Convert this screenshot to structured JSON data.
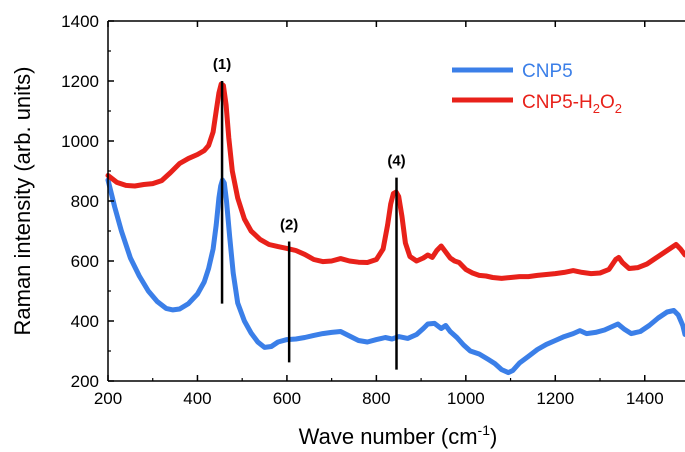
{
  "chart_data": {
    "type": "line",
    "xlabel": "Wave number (cm",
    "xlabel_sup": "-1",
    "xlabel_close": ")",
    "ylabel": "Raman intensity (arb. units)",
    "xlim": [
      200,
      1490
    ],
    "ylim": [
      200,
      1400
    ],
    "x_ticks": [
      200,
      400,
      600,
      800,
      1000,
      1200,
      1400
    ],
    "y_ticks": [
      200,
      400,
      600,
      800,
      1000,
      1200,
      1400
    ],
    "x_tick_labels": [
      "200",
      "400",
      "600",
      "800",
      "1000",
      "1200",
      "1400"
    ],
    "y_tick_labels": [
      "200",
      "400",
      "600",
      "800",
      "1000",
      "1200",
      "1400"
    ],
    "grid": false,
    "legend_position": "top-right",
    "legend": {
      "cnp5": "CNP5",
      "cnp5_h2o2": {
        "base": "CNP5-H",
        "sub1": "2",
        "mid": "O",
        "sub2": "2"
      }
    },
    "series": [
      {
        "name": "CNP5",
        "color": "#3B7FE8",
        "points": [
          [
            200,
            870
          ],
          [
            215,
            780
          ],
          [
            230,
            700
          ],
          [
            250,
            610
          ],
          [
            270,
            550
          ],
          [
            290,
            500
          ],
          [
            310,
            465
          ],
          [
            330,
            442
          ],
          [
            345,
            437
          ],
          [
            360,
            440
          ],
          [
            380,
            458
          ],
          [
            400,
            490
          ],
          [
            415,
            530
          ],
          [
            425,
            575
          ],
          [
            435,
            640
          ],
          [
            442,
            720
          ],
          [
            448,
            810
          ],
          [
            452,
            850
          ],
          [
            456,
            870
          ],
          [
            460,
            860
          ],
          [
            465,
            800
          ],
          [
            472,
            680
          ],
          [
            480,
            560
          ],
          [
            490,
            460
          ],
          [
            505,
            400
          ],
          [
            520,
            360
          ],
          [
            535,
            330
          ],
          [
            550,
            312
          ],
          [
            565,
            315
          ],
          [
            580,
            330
          ],
          [
            600,
            338
          ],
          [
            620,
            340
          ],
          [
            640,
            345
          ],
          [
            660,
            352
          ],
          [
            680,
            358
          ],
          [
            700,
            362
          ],
          [
            720,
            365
          ],
          [
            740,
            350
          ],
          [
            760,
            335
          ],
          [
            780,
            330
          ],
          [
            800,
            338
          ],
          [
            820,
            345
          ],
          [
            835,
            340
          ],
          [
            850,
            348
          ],
          [
            870,
            342
          ],
          [
            890,
            355
          ],
          [
            905,
            375
          ],
          [
            915,
            390
          ],
          [
            930,
            392
          ],
          [
            945,
            375
          ],
          [
            955,
            385
          ],
          [
            965,
            365
          ],
          [
            980,
            345
          ],
          [
            995,
            320
          ],
          [
            1010,
            300
          ],
          [
            1030,
            290
          ],
          [
            1050,
            272
          ],
          [
            1065,
            258
          ],
          [
            1080,
            238
          ],
          [
            1095,
            228
          ],
          [
            1105,
            235
          ],
          [
            1120,
            260
          ],
          [
            1140,
            282
          ],
          [
            1160,
            305
          ],
          [
            1180,
            322
          ],
          [
            1200,
            335
          ],
          [
            1220,
            348
          ],
          [
            1240,
            358
          ],
          [
            1255,
            368
          ],
          [
            1270,
            358
          ],
          [
            1290,
            362
          ],
          [
            1310,
            370
          ],
          [
            1325,
            380
          ],
          [
            1340,
            390
          ],
          [
            1355,
            372
          ],
          [
            1370,
            358
          ],
          [
            1390,
            365
          ],
          [
            1410,
            385
          ],
          [
            1430,
            410
          ],
          [
            1450,
            430
          ],
          [
            1465,
            435
          ],
          [
            1475,
            420
          ],
          [
            1485,
            385
          ],
          [
            1490,
            355
          ]
        ]
      },
      {
        "name": "CNP5-H2O2",
        "color": "#E8211A",
        "points": [
          [
            200,
            885
          ],
          [
            220,
            862
          ],
          [
            240,
            852
          ],
          [
            260,
            850
          ],
          [
            280,
            855
          ],
          [
            300,
            858
          ],
          [
            320,
            868
          ],
          [
            340,
            895
          ],
          [
            360,
            925
          ],
          [
            380,
            942
          ],
          [
            400,
            955
          ],
          [
            415,
            968
          ],
          [
            425,
            985
          ],
          [
            435,
            1030
          ],
          [
            442,
            1100
          ],
          [
            448,
            1160
          ],
          [
            453,
            1190
          ],
          [
            458,
            1185
          ],
          [
            464,
            1120
          ],
          [
            470,
            1010
          ],
          [
            478,
            900
          ],
          [
            490,
            810
          ],
          [
            505,
            740
          ],
          [
            520,
            700
          ],
          [
            540,
            672
          ],
          [
            560,
            655
          ],
          [
            580,
            648
          ],
          [
            600,
            642
          ],
          [
            620,
            635
          ],
          [
            640,
            622
          ],
          [
            660,
            605
          ],
          [
            680,
            598
          ],
          [
            700,
            600
          ],
          [
            720,
            608
          ],
          [
            740,
            600
          ],
          [
            760,
            596
          ],
          [
            780,
            595
          ],
          [
            800,
            605
          ],
          [
            815,
            640
          ],
          [
            825,
            720
          ],
          [
            832,
            790
          ],
          [
            838,
            825
          ],
          [
            844,
            830
          ],
          [
            850,
            815
          ],
          [
            857,
            750
          ],
          [
            865,
            660
          ],
          [
            875,
            615
          ],
          [
            890,
            600
          ],
          [
            905,
            610
          ],
          [
            915,
            620
          ],
          [
            925,
            612
          ],
          [
            935,
            635
          ],
          [
            945,
            650
          ],
          [
            955,
            630
          ],
          [
            965,
            610
          ],
          [
            975,
            600
          ],
          [
            985,
            595
          ],
          [
            1000,
            572
          ],
          [
            1015,
            560
          ],
          [
            1030,
            552
          ],
          [
            1045,
            550
          ],
          [
            1060,
            545
          ],
          [
            1080,
            542
          ],
          [
            1100,
            545
          ],
          [
            1120,
            548
          ],
          [
            1140,
            548
          ],
          [
            1160,
            552
          ],
          [
            1180,
            555
          ],
          [
            1200,
            558
          ],
          [
            1220,
            562
          ],
          [
            1240,
            568
          ],
          [
            1260,
            562
          ],
          [
            1280,
            558
          ],
          [
            1300,
            560
          ],
          [
            1320,
            572
          ],
          [
            1335,
            605
          ],
          [
            1342,
            612
          ],
          [
            1350,
            595
          ],
          [
            1365,
            575
          ],
          [
            1385,
            578
          ],
          [
            1405,
            590
          ],
          [
            1425,
            610
          ],
          [
            1445,
            630
          ],
          [
            1460,
            645
          ],
          [
            1470,
            655
          ],
          [
            1480,
            640
          ],
          [
            1490,
            620
          ]
        ]
      }
    ],
    "annotations": [
      {
        "label": "(1)",
        "x": 455,
        "y_top": 1200,
        "y_bottom": 458
      },
      {
        "label": "(2)",
        "x": 605,
        "y_top": 665,
        "y_bottom": 262
      },
      {
        "label": "(4)",
        "x": 845,
        "y_top": 878,
        "y_bottom": 238
      }
    ]
  }
}
